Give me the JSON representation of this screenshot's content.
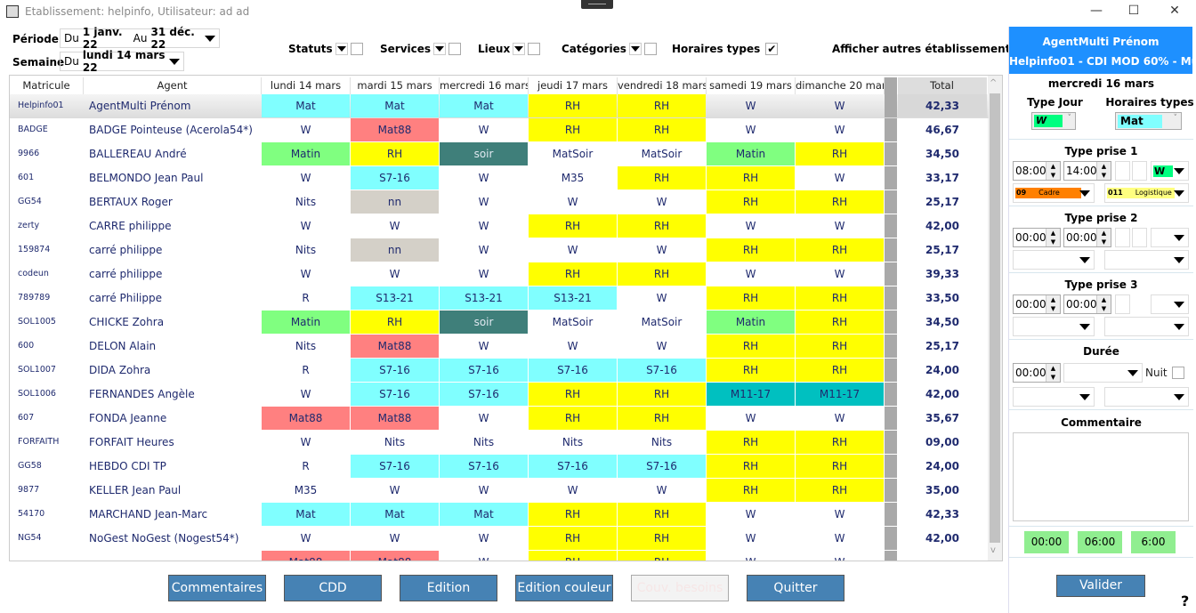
{
  "window": {
    "title": "Etablissement: helpinfo, Utilisateur: ad ad",
    "minimize": "—",
    "maximize": "☐",
    "close": "✕"
  },
  "filters": {
    "periode_label": "Période",
    "periode_du": "Du",
    "periode_start": "1 janv. 22",
    "periode_au": "Au",
    "periode_end": "31 déc. 22",
    "semaine_label": "Semaine",
    "semaine_du": "Du",
    "semaine_value": "lundi 14 mars 22",
    "statuts": "Statuts",
    "services": "Services",
    "lieux": "Lieux",
    "categories": "Catégories",
    "horaires_types": "Horaires types",
    "horaires_types_checked": true,
    "afficher_autres": "Afficher autres établissements",
    "afficher_autres_checked": true
  },
  "grid": {
    "headers": [
      "Matricule",
      "Agent",
      "lundi 14 mars",
      "mardi 15 mars",
      "mercredi 16 mars",
      "jeudi 17 mars",
      "vendredi 18 mars",
      "samedi 19 mars",
      "dimanche 20 mars",
      "Total"
    ],
    "colors": {
      "c": "#80ffff",
      "y": "#ffff00",
      "r": "#ff8080",
      "g": "#80ff80",
      "t": "#3f7f7a",
      "n": "#d4d0c8",
      "d": "#00c0c0",
      "w": "#ffffff"
    },
    "rows": [
      {
        "mat": "Helpinfo01",
        "agent": "AgentMulti Prénom",
        "days": [
          [
            "Mat",
            "c"
          ],
          [
            "Mat",
            "c"
          ],
          [
            "Mat",
            "c"
          ],
          [
            "RH",
            "y"
          ],
          [
            "RH",
            "y"
          ],
          [
            "W",
            "w"
          ],
          [
            "W",
            "w"
          ]
        ],
        "total": "42,33",
        "selected": true
      },
      {
        "mat": "BADGE",
        "agent": "BADGE Pointeuse (Acerola54*)",
        "days": [
          [
            "W",
            "w"
          ],
          [
            "Mat88",
            "r"
          ],
          [
            "W",
            "w"
          ],
          [
            "RH",
            "y"
          ],
          [
            "RH",
            "y"
          ],
          [
            "W",
            "w"
          ],
          [
            "W",
            "w"
          ]
        ],
        "total": "46,67"
      },
      {
        "mat": "9966",
        "agent": "BALLEREAU André",
        "days": [
          [
            "Matin",
            "g"
          ],
          [
            "RH",
            "y"
          ],
          [
            "soir",
            "t"
          ],
          [
            "MatSoir",
            "w"
          ],
          [
            "MatSoir",
            "w"
          ],
          [
            "Matin",
            "g"
          ],
          [
            "RH",
            "y"
          ]
        ],
        "total": "34,50"
      },
      {
        "mat": "601",
        "agent": "BELMONDO Jean Paul",
        "days": [
          [
            "W",
            "w"
          ],
          [
            "S7-16",
            "c"
          ],
          [
            "W",
            "w"
          ],
          [
            "M35",
            "w"
          ],
          [
            "RH",
            "y"
          ],
          [
            "RH",
            "y"
          ],
          [
            "W",
            "w"
          ]
        ],
        "total": "33,17"
      },
      {
        "mat": "GG54",
        "agent": "BERTAUX Roger",
        "days": [
          [
            "Nits",
            "w"
          ],
          [
            "nn",
            "n"
          ],
          [
            "W",
            "w"
          ],
          [
            "W",
            "w"
          ],
          [
            "W",
            "w"
          ],
          [
            "RH",
            "y"
          ],
          [
            "RH",
            "y"
          ]
        ],
        "total": "25,17"
      },
      {
        "mat": "zerty",
        "agent": "CARRE philippe",
        "days": [
          [
            "W",
            "w"
          ],
          [
            "W",
            "w"
          ],
          [
            "W",
            "w"
          ],
          [
            "RH",
            "y"
          ],
          [
            "RH",
            "y"
          ],
          [
            "W",
            "w"
          ],
          [
            "W",
            "w"
          ]
        ],
        "total": "42,00"
      },
      {
        "mat": "159874",
        "agent": "carré philippe",
        "days": [
          [
            "Nits",
            "w"
          ],
          [
            "nn",
            "n"
          ],
          [
            "W",
            "w"
          ],
          [
            "W",
            "w"
          ],
          [
            "W",
            "w"
          ],
          [
            "RH",
            "y"
          ],
          [
            "RH",
            "y"
          ]
        ],
        "total": "25,17"
      },
      {
        "mat": "codeun",
        "agent": "carré philippe",
        "days": [
          [
            "W",
            "w"
          ],
          [
            "W",
            "w"
          ],
          [
            "W",
            "w"
          ],
          [
            "RH",
            "y"
          ],
          [
            "RH",
            "y"
          ],
          [
            "W",
            "w"
          ],
          [
            "W",
            "w"
          ]
        ],
        "total": "39,33"
      },
      {
        "mat": "789789",
        "agent": "carré Philippe",
        "days": [
          [
            "R",
            "w"
          ],
          [
            "S13-21",
            "c"
          ],
          [
            "S13-21",
            "c"
          ],
          [
            "S13-21",
            "c"
          ],
          [
            "W",
            "w"
          ],
          [
            "RH",
            "y"
          ],
          [
            "RH",
            "y"
          ]
        ],
        "total": "33,50"
      },
      {
        "mat": "SOL1005",
        "agent": "CHICKE Zohra",
        "days": [
          [
            "Matin",
            "g"
          ],
          [
            "RH",
            "y"
          ],
          [
            "soir",
            "t"
          ],
          [
            "MatSoir",
            "w"
          ],
          [
            "MatSoir",
            "w"
          ],
          [
            "Matin",
            "g"
          ],
          [
            "RH",
            "y"
          ]
        ],
        "total": "34,50"
      },
      {
        "mat": "600",
        "agent": "DELON Alain",
        "days": [
          [
            "Nits",
            "w"
          ],
          [
            "Mat88",
            "r"
          ],
          [
            "W",
            "w"
          ],
          [
            "W",
            "w"
          ],
          [
            "W",
            "w"
          ],
          [
            "RH",
            "y"
          ],
          [
            "RH",
            "y"
          ]
        ],
        "total": "25,17"
      },
      {
        "mat": "SOL1007",
        "agent": "DIDA Zohra",
        "days": [
          [
            "R",
            "w"
          ],
          [
            "S7-16",
            "c"
          ],
          [
            "S7-16",
            "c"
          ],
          [
            "S7-16",
            "c"
          ],
          [
            "S7-16",
            "c"
          ],
          [
            "RH",
            "y"
          ],
          [
            "RH",
            "y"
          ]
        ],
        "total": "24,00"
      },
      {
        "mat": "SOL1006",
        "agent": "FERNANDES Angèle",
        "days": [
          [
            "W",
            "w"
          ],
          [
            "S7-16",
            "c"
          ],
          [
            "S7-16",
            "c"
          ],
          [
            "RH",
            "y"
          ],
          [
            "RH",
            "y"
          ],
          [
            "M11-17",
            "d"
          ],
          [
            "M11-17",
            "d"
          ]
        ],
        "total": "42,00"
      },
      {
        "mat": "607",
        "agent": "FONDA Jeanne",
        "days": [
          [
            "Mat88",
            "r"
          ],
          [
            "Mat88",
            "r"
          ],
          [
            "W",
            "w"
          ],
          [
            "RH",
            "y"
          ],
          [
            "RH",
            "y"
          ],
          [
            "W",
            "w"
          ],
          [
            "W",
            "w"
          ]
        ],
        "total": "35,67"
      },
      {
        "mat": "FORFAITH",
        "agent": "FORFAIT Heures",
        "days": [
          [
            "W",
            "w"
          ],
          [
            "Nits",
            "w"
          ],
          [
            "Nits",
            "w"
          ],
          [
            "Nits",
            "w"
          ],
          [
            "Nits",
            "w"
          ],
          [
            "RH",
            "y"
          ],
          [
            "RH",
            "y"
          ]
        ],
        "total": "09,00"
      },
      {
        "mat": "GG58",
        "agent": "HEBDO CDI TP",
        "days": [
          [
            "R",
            "w"
          ],
          [
            "S7-16",
            "c"
          ],
          [
            "S7-16",
            "c"
          ],
          [
            "S7-16",
            "c"
          ],
          [
            "S7-16",
            "c"
          ],
          [
            "RH",
            "y"
          ],
          [
            "RH",
            "y"
          ]
        ],
        "total": "24,00"
      },
      {
        "mat": "9877",
        "agent": "KELLER Jean Paul",
        "days": [
          [
            "M35",
            "w"
          ],
          [
            "W",
            "w"
          ],
          [
            "W",
            "w"
          ],
          [
            "W",
            "w"
          ],
          [
            "W",
            "w"
          ],
          [
            "RH",
            "y"
          ],
          [
            "RH",
            "y"
          ]
        ],
        "total": "35,00"
      },
      {
        "mat": "54170",
        "agent": "MARCHAND Jean-Marc",
        "days": [
          [
            "Mat",
            "c"
          ],
          [
            "Mat",
            "c"
          ],
          [
            "Mat",
            "c"
          ],
          [
            "RH",
            "y"
          ],
          [
            "RH",
            "y"
          ],
          [
            "W",
            "w"
          ],
          [
            "W",
            "w"
          ]
        ],
        "total": "42,33"
      },
      {
        "mat": "NG54",
        "agent": "NoGest NoGest (Nogest54*)",
        "days": [
          [
            "W",
            "w"
          ],
          [
            "W",
            "w"
          ],
          [
            "W",
            "w"
          ],
          [
            "RH",
            "y"
          ],
          [
            "RH",
            "y"
          ],
          [
            "W",
            "w"
          ],
          [
            "W",
            "w"
          ]
        ],
        "total": "42,00"
      },
      {
        "mat": "",
        "agent": "",
        "days": [
          [
            "Mat88",
            "r"
          ],
          [
            "Mat88",
            "r"
          ],
          [
            "W",
            "w"
          ],
          [
            "RH",
            "y"
          ],
          [
            "RH",
            "y"
          ],
          [
            "W",
            "w"
          ],
          [
            "W",
            "w"
          ]
        ],
        "total": ""
      }
    ]
  },
  "buttons": {
    "commentaires": "Commentaires",
    "cdd": "CDD",
    "edition": "Edition",
    "edition_couleur": "Edition couleur",
    "couv_besoins": "Couv. besoins",
    "quitter": "Quitter"
  },
  "panel": {
    "agent": "AgentMulti Prénom",
    "contract": "Helpinfo01 - CDI MOD 60% - Multi",
    "date": "mercredi 16 mars",
    "type_jour_label": "Type Jour",
    "type_jour": "W",
    "horaires_label": "Horaires types",
    "horaire": "Mat",
    "prise1_label": "Type prise 1",
    "prise1_start": "08:00",
    "prise1_end": "14:00",
    "prise1_type": "W",
    "prise1_cat": "09",
    "prise1_cat_name": "Cadre",
    "prise1_serv": "011",
    "prise1_serv_name": "Logistique",
    "prise2_label": "Type prise 2",
    "prise2_start": "00:00",
    "prise2_end": "00:00",
    "prise3_label": "Type prise 3",
    "prise3_start": "00:00",
    "prise3_end": "00:00",
    "duree_label": "Durée",
    "duree": "00:00",
    "nuit_label": "Nuit",
    "commentaire_label": "Commentaire",
    "totals": [
      "00:00",
      "06:00",
      "6:00"
    ],
    "valider": "Valider",
    "help": "?"
  }
}
